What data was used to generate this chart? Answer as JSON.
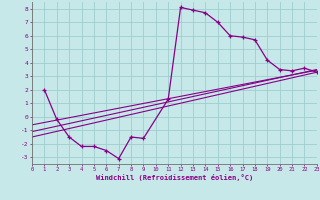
{
  "bg_color": "#c6e8e8",
  "grid_color": "#9ecece",
  "line_color": "#880088",
  "xlabel": "Windchill (Refroidissement éolien,°C)",
  "xlim": [
    0,
    23
  ],
  "ylim": [
    -3.5,
    8.5
  ],
  "xticks": [
    0,
    1,
    2,
    3,
    4,
    5,
    6,
    7,
    8,
    9,
    10,
    11,
    12,
    13,
    14,
    15,
    16,
    17,
    18,
    19,
    20,
    21,
    22,
    23
  ],
  "yticks": [
    -3,
    -2,
    -1,
    0,
    1,
    2,
    3,
    4,
    5,
    6,
    7,
    8
  ],
  "line1_x": [
    1,
    2,
    3,
    4,
    5,
    6,
    7,
    8,
    9,
    11,
    12,
    13,
    14,
    15,
    16,
    17,
    18,
    19,
    20,
    21,
    22,
    23
  ],
  "line1_y": [
    2.0,
    -0.2,
    -1.5,
    -2.2,
    -2.2,
    -2.5,
    -3.1,
    -1.5,
    -1.6,
    1.3,
    8.1,
    7.9,
    7.7,
    7.0,
    6.0,
    5.9,
    5.7,
    4.2,
    3.5,
    3.4,
    3.6,
    3.3
  ],
  "line2_x": [
    0,
    23
  ],
  "line2_y": [
    -1.5,
    3.3
  ],
  "line3_x": [
    0,
    23
  ],
  "line3_y": [
    -1.1,
    3.5
  ],
  "line4_x": [
    0,
    23
  ],
  "line4_y": [
    -0.6,
    3.45
  ]
}
